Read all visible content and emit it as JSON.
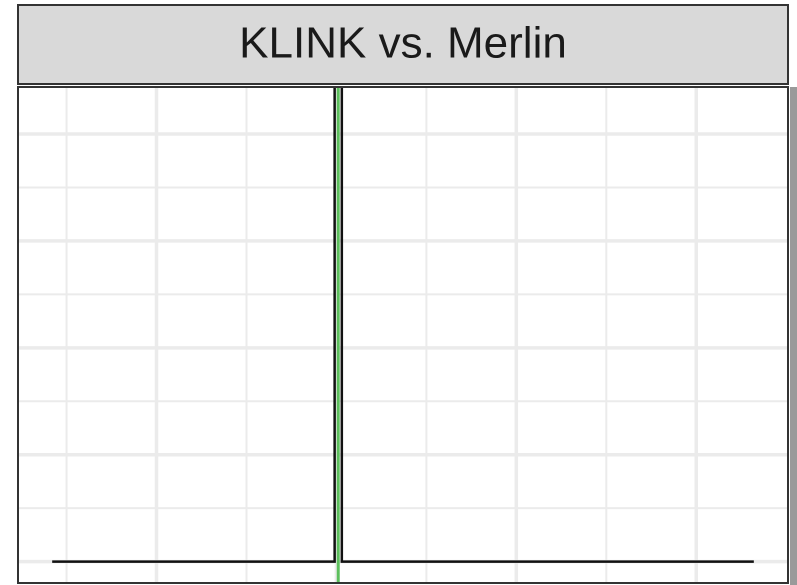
{
  "chart_data": {
    "type": "line",
    "title": "KLINK vs. Merlin",
    "x": [
      -1.58,
      -0.01,
      -0.01,
      0.03,
      0.03,
      2.32
    ],
    "values": [
      0,
      0,
      5,
      5,
      0,
      0
    ],
    "color": "#111111",
    "vline": {
      "x": 0.01,
      "color": "#5cbf5c"
    },
    "xlim": [
      -1.77,
      2.51
    ],
    "ylim": [
      -0.2,
      4.44
    ],
    "xticks": [
      -1,
      0,
      1,
      2
    ],
    "xminor": [
      -1.5,
      -0.5,
      0.5,
      1.5
    ],
    "yticks": [
      0,
      1,
      2,
      3,
      4
    ],
    "yminor": [
      0.5,
      1.5,
      2.5,
      3.5
    ],
    "grid": true
  }
}
